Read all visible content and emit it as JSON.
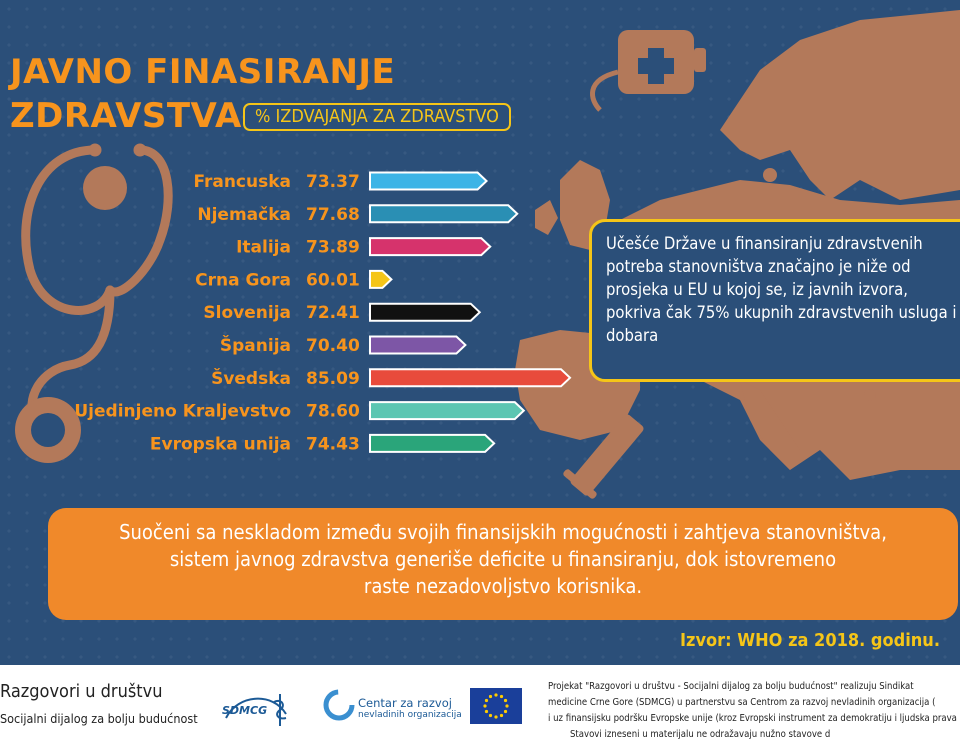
{
  "header": {
    "title_line1": "JAVNO FINASIRANJE",
    "title_line2": "ZDRAVSTVA",
    "subtitle": "% IZDVAJANJA ZA ZDRAVSTVO"
  },
  "chart_data": {
    "type": "bar",
    "orientation": "horizontal",
    "categories": [
      "Francuska",
      "Njemačka",
      "Italija",
      "Crna Gora",
      "Slovenija",
      "Španija",
      "Švedska",
      "Ujedinjeno Kraljevstvo",
      "Evropska unija"
    ],
    "values": [
      73.37,
      77.68,
      73.89,
      60.01,
      72.41,
      70.4,
      85.09,
      78.6,
      74.43
    ],
    "value_labels": [
      "73.37",
      "77.68",
      "73.89",
      "60.01",
      "72.41",
      "70.40",
      "85.09",
      "78.60",
      "74.43"
    ],
    "colors": [
      "#3cb4e6",
      "#2a8fb4",
      "#d6336c",
      "#f5c518",
      "#111111",
      "#7d56a6",
      "#e84b3c",
      "#5cc6b2",
      "#2aa57a"
    ],
    "title": "",
    "xlabel": "",
    "ylabel": "",
    "legend": "none",
    "grid": false
  },
  "infobox": {
    "text": "Učešće Države u finansiranju zdravstvenih potreba stanovništva značajno je niže od prosjeka u EU u kojoj se, iz javnih izvora, pokriva čak 75% ukupnih zdravstvenih usluga i dobara"
  },
  "bottom": {
    "line1": "Suočeni sa neskladom između svojih finansijskih mogućnosti i zahtjeva stanovništva,",
    "line2": "sistem javnog zdravstva generiše deficite u finansiranju, dok istovremeno",
    "line3": "raste nezadovoljstvo korisnika."
  },
  "source": "Izvor: WHO za 2018. godinu.",
  "footer": {
    "project_name": "Razgovori u društvu",
    "project_sub": "Socijalni dijalog za bolju budućnost",
    "sdmcg_logo": "SDMCG",
    "cnvo_line1": "Centar za razvoj",
    "cnvo_line2": "nevladinih organizacija",
    "text1": "Projekat \"Razgovori u društvu - Socijalni dijalog za bolju budućnost\" realizuju Sindikat",
    "text2": "medicine Crne Gore (SDMCG) u partnerstvu sa Centrom za razvoj nevladinih organizacija (",
    "text3": "i uz finansijsku podršku Evropske unije (kroz Evropski instrument za demokratiju i ljudska prava -",
    "text4": "Stavovi izneseni u materijalu ne odražavaju nužno stavove d"
  },
  "colors": {
    "background": "#2b4f79",
    "map": "#b3795a",
    "orange": "#f0892a",
    "yellow": "#f5c518"
  },
  "icons": [
    "europe-map",
    "stethoscope-icon",
    "infusion-bag-icon",
    "syringe-icon",
    "eu-flag-icon",
    "cnvo-logo",
    "sdmcg-logo"
  ]
}
